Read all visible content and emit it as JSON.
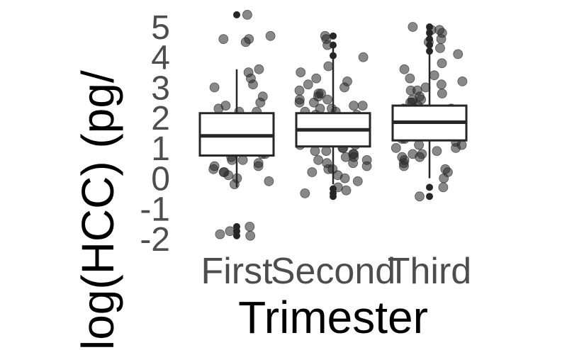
{
  "chart_data": {
    "type": "boxplot",
    "xlabel": "Trimester",
    "ylabel": "log(HCC) (pg/",
    "categories": [
      "First",
      "Second",
      "Third"
    ],
    "y_ticks": [
      "5",
      "4",
      "3",
      "2",
      "1",
      "0",
      "-1",
      "-2"
    ],
    "y_tick_values": [
      5,
      4,
      3,
      2,
      1,
      0,
      -1,
      -2
    ],
    "ylim": [
      -2.4,
      5.6
    ],
    "grid": false,
    "boxes": [
      {
        "name": "First",
        "q1": 0.75,
        "median": 1.4,
        "q3": 2.15,
        "whisker_low": -0.3,
        "whisker_high": 3.6,
        "outliers": [
          -1.6,
          -1.75,
          -1.9,
          5.4
        ],
        "jitter_points": [
          5.4,
          4.6,
          4.5,
          4.7,
          4.6,
          3.5,
          3.0,
          2.7,
          3.3,
          3.6,
          3.1,
          2.4,
          2.2,
          2.0,
          1.9,
          2.3,
          2.0,
          1.8,
          1.6,
          1.5,
          1.4,
          1.3,
          1.2,
          1.1,
          1.0,
          0.9,
          0.8,
          0.9,
          0.7,
          0.6,
          0.5,
          0.4,
          0.3,
          0.2,
          0.1,
          0.0,
          -0.1,
          -0.2,
          1.7,
          1.5,
          1.2,
          0.8,
          0.4,
          0.2,
          2.2,
          2.5,
          1.9,
          1.1,
          0.6,
          1.3,
          -1.6,
          -1.75,
          -1.9,
          -1.85
        ]
      },
      {
        "name": "Second",
        "q1": 1.05,
        "median": 1.6,
        "q3": 2.15,
        "whisker_low": -0.2,
        "whisker_high": 4.5,
        "outliers": [
          4.7,
          4.4,
          4.05,
          -0.35,
          -0.5,
          -0.6
        ],
        "jitter_points": [
          4.7,
          4.6,
          4.4,
          4.0,
          3.7,
          3.5,
          3.3,
          3.1,
          3.0,
          2.9,
          2.8,
          2.7,
          2.6,
          2.5,
          2.4,
          2.3,
          2.2,
          2.1,
          2.0,
          2.0,
          1.9,
          1.8,
          1.8,
          1.7,
          1.6,
          1.6,
          1.5,
          1.4,
          1.4,
          1.3,
          1.2,
          1.2,
          1.1,
          1.0,
          1.0,
          0.9,
          0.8,
          0.7,
          0.6,
          0.5,
          0.4,
          0.3,
          0.2,
          0.1,
          0.0,
          -0.1,
          -0.3,
          -0.4,
          -0.5,
          2.4,
          2.2,
          2.1,
          1.9,
          1.7,
          1.5,
          1.3,
          0.9,
          0.7,
          0.5,
          0.3,
          2.6,
          2.8,
          3.2,
          1.1,
          0.8,
          0.6,
          1.6,
          2.0,
          2.3,
          2.5
        ]
      },
      {
        "name": "Third",
        "q1": 1.25,
        "median": 1.85,
        "q3": 2.4,
        "whisker_low": 0.0,
        "whisker_high": 4.3,
        "outliers": [
          5.0,
          4.8,
          4.6,
          4.4,
          4.2,
          -0.3,
          -0.6
        ],
        "jitter_points": [
          5.0,
          4.9,
          4.9,
          4.8,
          4.6,
          4.5,
          4.3,
          4.1,
          3.8,
          3.6,
          3.4,
          3.3,
          3.1,
          3.0,
          2.9,
          2.8,
          2.7,
          2.6,
          2.5,
          2.4,
          2.3,
          2.2,
          2.1,
          2.0,
          1.9,
          1.8,
          1.7,
          1.6,
          1.5,
          1.4,
          1.3,
          1.2,
          1.1,
          1.0,
          0.9,
          0.8,
          0.7,
          0.6,
          0.5,
          0.4,
          0.2,
          0.0,
          -0.3,
          -0.6,
          2.5,
          2.2,
          1.9,
          1.6,
          1.3,
          1.0,
          0.7,
          3.2,
          2.9,
          2.6,
          1.4,
          1.1,
          0.8,
          0.3,
          2.0,
          2.3
        ]
      }
    ]
  }
}
